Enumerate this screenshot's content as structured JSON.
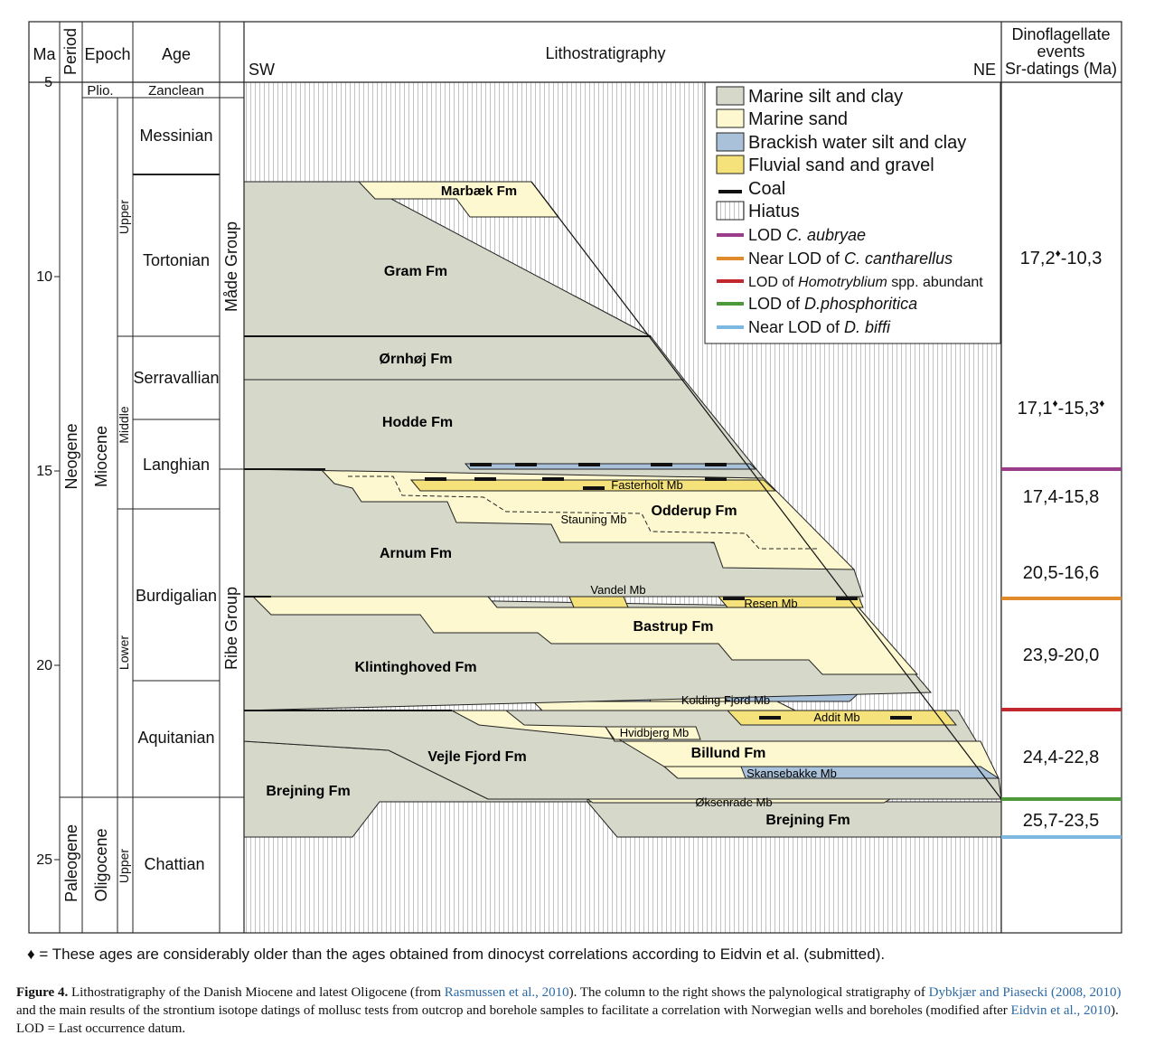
{
  "headers": {
    "ma": "Ma",
    "period": "Period",
    "epoch": "Epoch",
    "age": "Age",
    "litho": "Lithostratigraphy",
    "sw": "SW",
    "ne": "NE",
    "dino_line1": "Dinoflagellate",
    "dino_line2": "events",
    "dino_line3": "Sr-datings (Ma)"
  },
  "ma_ticks": [
    "5",
    "10",
    "15",
    "20",
    "25"
  ],
  "periods": {
    "neogene": "Neogene",
    "paleogene": "Paleogene"
  },
  "epochs": {
    "plio": "Plio.",
    "miocene": "Miocene",
    "oligocene": "Oligocene"
  },
  "subepochs": {
    "upper": "Upper",
    "middle": "Middle",
    "lower": "Lower",
    "oligo_upper": "Upper"
  },
  "ages": {
    "zanclean": "Zanclean",
    "messinian": "Messinian",
    "tortonian": "Tortonian",
    "serravallian": "Serravallian",
    "langhian": "Langhian",
    "burdigalian": "Burdigalian",
    "aquitanian": "Aquitanian",
    "chattian": "Chattian"
  },
  "groups": {
    "made": "Måde Group",
    "ribe": "Ribe Group"
  },
  "formations": {
    "marbaek": "Marbæk Fm",
    "gram": "Gram Fm",
    "ornhoj": "Ørnhøj Fm",
    "hodde": "Hodde Fm",
    "fasterholt": "Fasterholt Mb",
    "odderup": "Odderup Fm",
    "stauning": "Stauning Mb",
    "arnum": "Arnum Fm",
    "vandel": "Vandel Mb",
    "resen": "Resen Mb",
    "bastrup": "Bastrup Fm",
    "klintinghoved": "Klintinghoved Fm",
    "kolding": "Kolding Fjord Mb",
    "addit": "Addit Mb",
    "hvidbjerg": "Hvidbjerg Mb",
    "vejle": "Vejle Fjord Fm",
    "billund": "Billund Fm",
    "skansebakke": "Skansebakke Mb",
    "brejning_sw": "Brejning Fm",
    "oksenrade": "Øksenrade Mb",
    "brejning_ne": "Brejning Fm"
  },
  "legend": [
    {
      "text": "Marine silt and clay",
      "swatch": "box",
      "color": "#d6d8c9"
    },
    {
      "text": "Marine sand",
      "swatch": "box",
      "color": "#fdf8cf"
    },
    {
      "text": "Brackish water silt and clay",
      "swatch": "box",
      "color": "#a9c1d9"
    },
    {
      "text": "Fluvial sand and gravel",
      "swatch": "box",
      "color": "#f6e27a"
    },
    {
      "text": "Coal",
      "swatch": "coal",
      "color": "#111111"
    },
    {
      "text": "Hiatus",
      "swatch": "hatch",
      "color": "#ffffff"
    },
    {
      "prefix": "LOD ",
      "italic": "C. aubryae",
      "suffix": "",
      "swatch": "line",
      "color": "#9a3d8a"
    },
    {
      "prefix": "Near LOD of ",
      "italic": "C. cantharellus",
      "suffix": "",
      "swatch": "line",
      "color": "#e08a2c"
    },
    {
      "prefix": "LOD of ",
      "italic": "Homotryblium",
      "suffix": " spp. abundant",
      "swatch": "line",
      "color": "#c2272d"
    },
    {
      "prefix": "LOD of ",
      "italic": "D.phosphoritica",
      "suffix": "",
      "swatch": "line",
      "color": "#4e9a3b"
    },
    {
      "prefix": "Near LOD of ",
      "italic": "D. biffi",
      "suffix": "",
      "swatch": "line",
      "color": "#7db8e0"
    }
  ],
  "dino_values": [
    {
      "main": "17,2",
      "sup": "♦",
      "rest": "-10,3",
      "sup2": ""
    },
    {
      "main": "17,1",
      "sup": "♦",
      "rest": "-15,3",
      "sup2": "♦"
    },
    {
      "main": "17,4-15,8",
      "sup": "",
      "rest": "",
      "sup2": ""
    },
    {
      "main": "20,5-16,6",
      "sup": "",
      "rest": "",
      "sup2": ""
    },
    {
      "main": "23,9-20,0",
      "sup": "",
      "rest": "",
      "sup2": ""
    },
    {
      "main": "24,4-22,8",
      "sup": "",
      "rest": "",
      "sup2": ""
    },
    {
      "main": "25,7-23,5",
      "sup": "",
      "rest": "",
      "sup2": ""
    }
  ],
  "footnote": "♦ = These ages are considerably older than the ages obtained from dinocyst correlations according to Eidvin et al. (submitted).",
  "caption": {
    "label": "Figure 4.",
    "t1": " Lithostratigraphy of the Danish Miocene and latest Oligocene (from ",
    "r1": "Rasmussen et al., 2010",
    "t2": "). The column to the right shows the palynological stratigraphy of ",
    "r2": "Dybkjær and Piasecki (2008, 2010)",
    "t3": " and the main results of the strontium isotope datings of mollusc tests from outcrop and borehole samples to facilitate a correlation with Norwegian wells and boreholes (modified after ",
    "r3": "Eidvin et al., 2010",
    "t4": "). LOD = Last occurrence datum."
  },
  "colors": {
    "clay": "#d6d8c9",
    "sand": "#fdf8cf",
    "brackish": "#a9c1d9",
    "fluvial": "#f6e27a",
    "aubryae": "#9a3d8a",
    "cantharellus": "#e08a2c",
    "homotryblium": "#c2272d",
    "phosphoritica": "#4e9a3b",
    "biffi": "#7db8e0"
  }
}
